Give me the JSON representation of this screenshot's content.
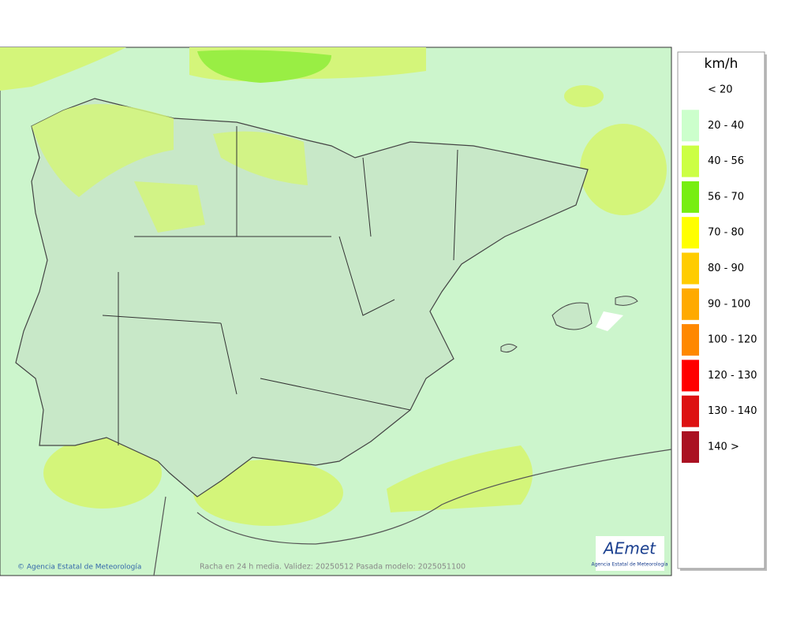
{
  "map": {
    "credit": "© Agencia Estatal de Meteorología",
    "caption": "Racha en 24 h media. Validez: 20250512 Pasada modelo: 2025051100",
    "logo": {
      "text": "AEmet",
      "subtitle": "Agencia Estatal de Meteorología"
    }
  },
  "legend": {
    "title": "km/h",
    "items": [
      {
        "label": "< 20",
        "color": "#ffffff"
      },
      {
        "label": "20 - 40",
        "color": "#ccffcc"
      },
      {
        "label": "40 - 56",
        "color": "#ccff44"
      },
      {
        "label": "56 - 70",
        "color": "#77ee11"
      },
      {
        "label": "70 - 80",
        "color": "#ffff00"
      },
      {
        "label": "80 - 90",
        "color": "#ffcc00"
      },
      {
        "label": "90 - 100",
        "color": "#ffaa00"
      },
      {
        "label": "100 - 120",
        "color": "#ff8800"
      },
      {
        "label": "120 - 130",
        "color": "#ff0000"
      },
      {
        "label": "130 - 140",
        "color": "#dd1111"
      },
      {
        "label": "140 >",
        "color": "#aa1122"
      }
    ]
  }
}
